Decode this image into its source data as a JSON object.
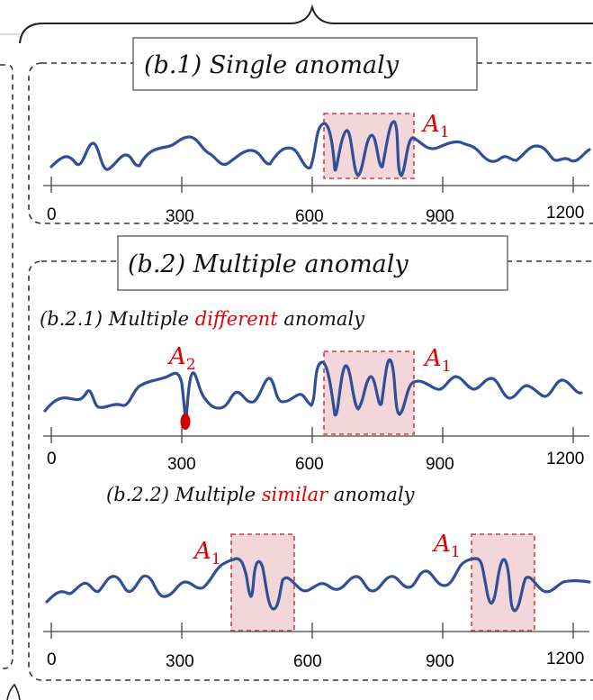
{
  "colors": {
    "signal": "#2f4f98",
    "anomaly_fill": "#f2d6d9",
    "anomaly_stroke": "#d83a3a",
    "label_red": "#e00000",
    "frame": "#333333"
  },
  "panel_b1": {
    "title": "(b.1) Single anomaly",
    "anomaly_label": {
      "main": "A",
      "sub": "1"
    },
    "ticks": [
      "0",
      "300",
      "600",
      "900",
      "1200"
    ]
  },
  "panel_b2": {
    "title": "(b.2) Multiple anomaly",
    "sub1": {
      "prefix": "(b.2.1) Multiple ",
      "highlight": "different",
      "suffix": " anomaly",
      "labels": [
        {
          "main": "A",
          "sub": "2"
        },
        {
          "main": "A",
          "sub": "1"
        }
      ],
      "ticks": [
        "0",
        "300",
        "600",
        "900",
        "1200"
      ]
    },
    "sub2": {
      "prefix": "(b.2.2) Multiple ",
      "highlight": "similar",
      "suffix": " anomaly",
      "labels": [
        {
          "main": "A",
          "sub": "1"
        },
        {
          "main": "A",
          "sub": "1"
        }
      ],
      "ticks": [
        "0",
        "300",
        "600",
        "900",
        "1200"
      ]
    }
  }
}
